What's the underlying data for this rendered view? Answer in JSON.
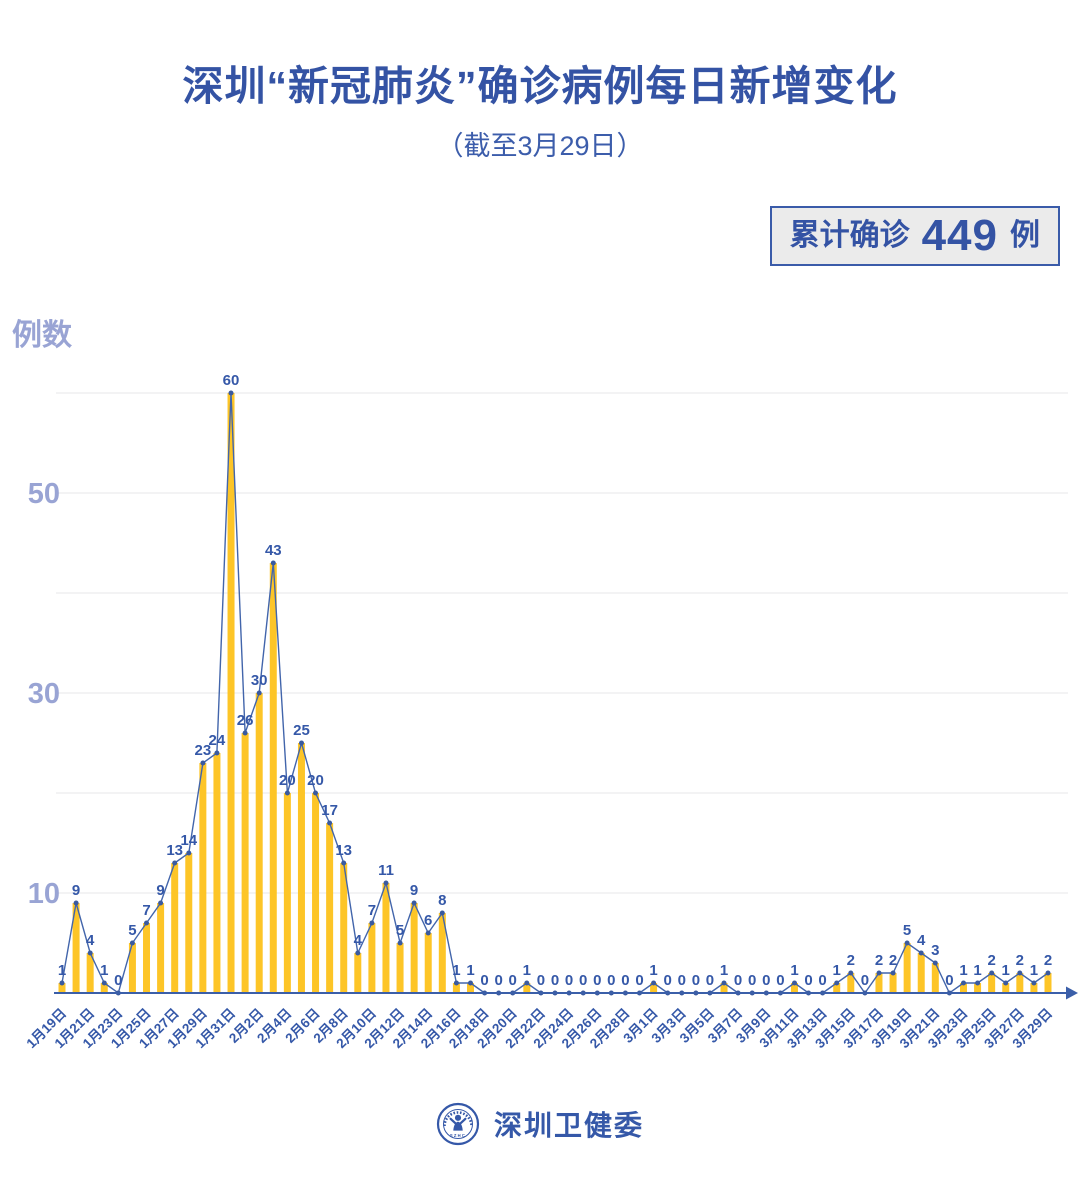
{
  "header": {
    "title": "深圳“新冠肺炎”确诊病例每日新增变化",
    "subtitle": "（截至3月29日）"
  },
  "badge": {
    "prefix": "累计确诊",
    "value": "449",
    "suffix": "例"
  },
  "chart_data": {
    "type": "bar",
    "title": "深圳“新冠肺炎”确诊病例每日新增变化",
    "ylabel": "例数",
    "xlabel": "",
    "ylim": [
      0,
      62
    ],
    "y_ticks_labeled": [
      10,
      30,
      50
    ],
    "gridlines_every": 10,
    "legend": "none",
    "x_tick_interval": 2,
    "x_tick_labels": [
      "1月19日",
      "1月21日",
      "1月23日",
      "1月25日",
      "1月27日",
      "1月29日",
      "1月31日",
      "2月2日",
      "2月4日",
      "2月6日",
      "2月8日",
      "2月10日",
      "2月12日",
      "2月14日",
      "2月16日",
      "2月18日",
      "2月20日",
      "2月22日",
      "2月24日",
      "2月26日",
      "2月28日",
      "3月1日",
      "3月3日",
      "3月5日",
      "3月7日",
      "3月9日",
      "3月11日",
      "3月13日",
      "3月15日",
      "3月17日",
      "3月19日",
      "3月21日",
      "3月23日",
      "3月25日",
      "3月27日",
      "3月29日"
    ],
    "values": [
      1,
      9,
      4,
      1,
      0,
      5,
      7,
      9,
      13,
      14,
      23,
      24,
      60,
      26,
      30,
      43,
      20,
      25,
      20,
      17,
      13,
      4,
      7,
      11,
      5,
      9,
      6,
      8,
      1,
      1,
      0,
      0,
      0,
      1,
      0,
      0,
      0,
      0,
      0,
      0,
      0,
      0,
      1,
      0,
      0,
      0,
      0,
      1,
      0,
      0,
      0,
      0,
      1,
      0,
      0,
      1,
      2,
      0,
      2,
      2,
      5,
      4,
      3,
      0,
      1,
      1,
      2,
      1,
      2,
      1,
      2
    ],
    "total": 449,
    "colors": {
      "bar": "#fdc527",
      "line": "#4265ab",
      "marker": "#3a5a9f",
      "label": "#3558a8",
      "axis": "#3b5fa9",
      "grid": "#e7e7e9",
      "ytick": "#99a4d4",
      "title": "#3453a4",
      "badge_bg": "#ebebeb"
    }
  },
  "footer": {
    "org": "深圳卫健委",
    "logo_text": "SZHC"
  }
}
